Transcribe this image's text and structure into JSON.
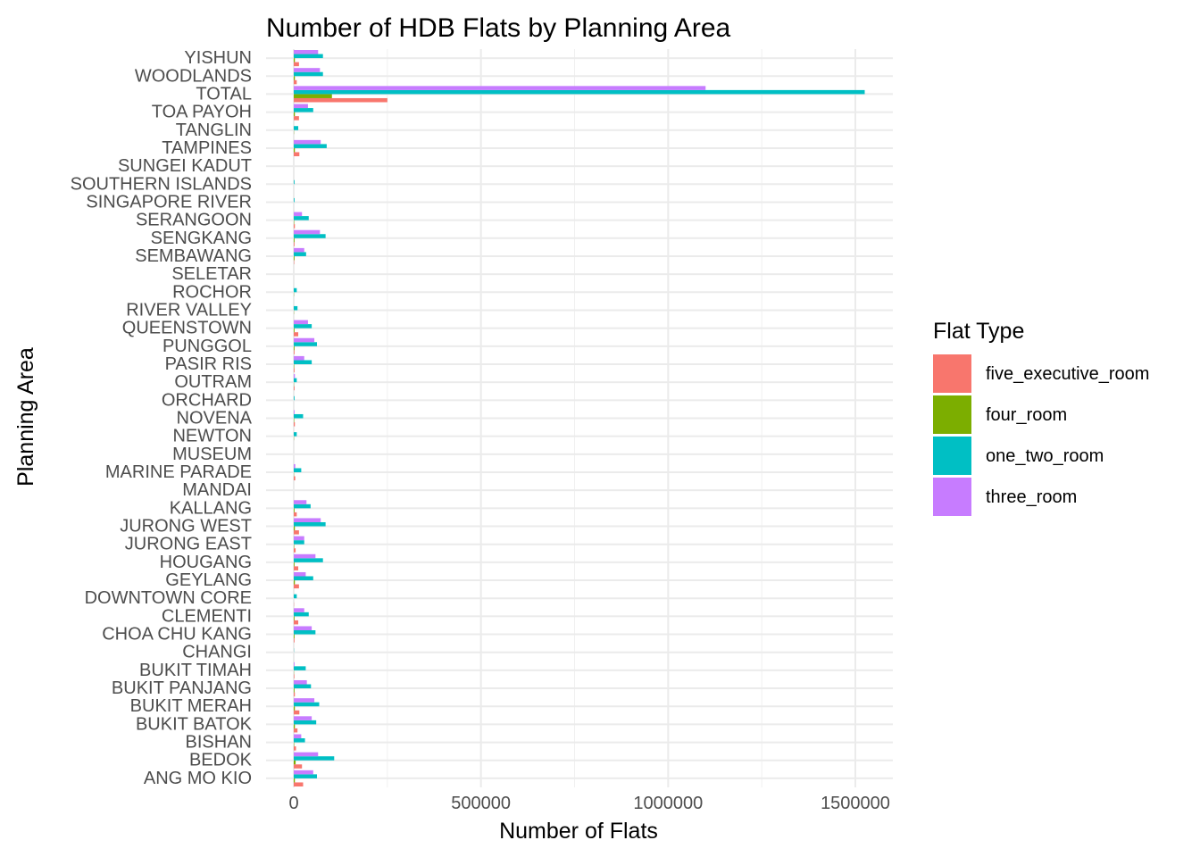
{
  "chart_data": {
    "type": "bar",
    "orientation": "horizontal",
    "title": "Number of HDB Flats by Planning Area",
    "xlabel": "Number of Flats",
    "ylabel": "Planning Area",
    "xlim": [
      0,
      1600000
    ],
    "x_ticks": [
      0,
      500000,
      1000000,
      1500000
    ],
    "x_tick_labels": [
      "0",
      "500000",
      "1000000",
      "1500000"
    ],
    "grid": true,
    "legend_title": "Flat Type",
    "legend_position": "right",
    "categories": [
      "ANG MO KIO",
      "BEDOK",
      "BISHAN",
      "BUKIT BATOK",
      "BUKIT MERAH",
      "BUKIT PANJANG",
      "BUKIT TIMAH",
      "CHANGI",
      "CHOA CHU KANG",
      "CLEMENTI",
      "DOWNTOWN CORE",
      "GEYLANG",
      "HOUGANG",
      "JURONG EAST",
      "JURONG WEST",
      "KALLANG",
      "MANDAI",
      "MARINE PARADE",
      "MUSEUM",
      "NEWTON",
      "NOVENA",
      "ORCHARD",
      "OUTRAM",
      "PASIR RIS",
      "PUNGGOL",
      "QUEENSTOWN",
      "RIVER VALLEY",
      "ROCHOR",
      "SELETAR",
      "SEMBAWANG",
      "SENGKANG",
      "SERANGOON",
      "SINGAPORE RIVER",
      "SOUTHERN ISLANDS",
      "SUNGEI KADUT",
      "TAMPINES",
      "TANGLIN",
      "TOA PAYOH",
      "TOTAL",
      "WOODLANDS",
      "YISHUN"
    ],
    "series": [
      {
        "name": "five_executive_room",
        "color": "#F8766D",
        "values": [
          25000,
          22000,
          6000,
          10000,
          15000,
          3000,
          1500,
          0,
          2000,
          12000,
          500,
          14000,
          12000,
          5000,
          14000,
          8000,
          0,
          4000,
          0,
          0,
          3000,
          0,
          2000,
          2000,
          2000,
          12000,
          0,
          0,
          0,
          1000,
          2000,
          3000,
          0,
          0,
          0,
          15000,
          0,
          14000,
          250000,
          8000,
          14000
        ]
      },
      {
        "name": "four_room",
        "color": "#7CAE00",
        "values": [
          3000,
          5000,
          1000,
          3000,
          3000,
          2000,
          500,
          0,
          2000,
          2000,
          0,
          3000,
          2000,
          1000,
          3000,
          2000,
          0,
          500,
          0,
          500,
          1000,
          0,
          500,
          1000,
          2000,
          2000,
          500,
          500,
          0,
          2000,
          2000,
          1000,
          0,
          0,
          0,
          3000,
          500,
          3000,
          102000,
          3000,
          3000
        ]
      },
      {
        "name": "one_two_room",
        "color": "#00BFC4",
        "values": [
          62000,
          108000,
          30000,
          60000,
          68000,
          46000,
          32000,
          500,
          58000,
          40000,
          8000,
          52000,
          78000,
          28000,
          85000,
          45000,
          0,
          20000,
          0,
          8000,
          25000,
          2000,
          8000,
          48000,
          62000,
          48000,
          10000,
          8000,
          0,
          33000,
          85000,
          40000,
          2000,
          2000,
          0,
          88000,
          12000,
          52000,
          1525000,
          78000,
          78000
        ]
      },
      {
        "name": "three_room",
        "color": "#C77CFF",
        "values": [
          52000,
          65000,
          20000,
          48000,
          55000,
          35000,
          2000,
          0,
          48000,
          28000,
          0,
          32000,
          58000,
          28000,
          72000,
          34000,
          0,
          4000,
          0,
          0,
          2000,
          0,
          3000,
          28000,
          55000,
          38000,
          0,
          0,
          0,
          28000,
          70000,
          22000,
          0,
          0,
          0,
          72000,
          0,
          38000,
          1100000,
          70000,
          65000
        ]
      }
    ]
  }
}
